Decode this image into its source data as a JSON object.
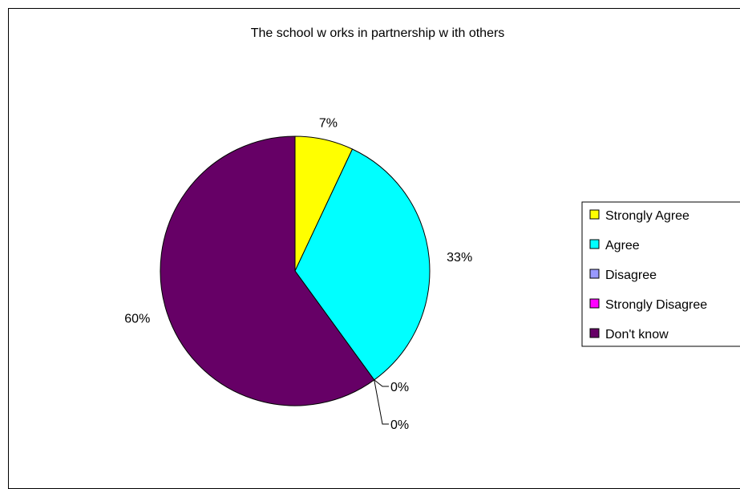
{
  "chart_data": {
    "type": "pie",
    "title": "The school w orks in partnership w ith others",
    "categories": [
      "Strongly Agree",
      "Agree",
      "Disagree",
      "Strongly Disagree",
      "Don't know"
    ],
    "values": [
      7,
      33,
      0,
      0,
      60
    ],
    "value_labels": [
      "7%",
      "33%",
      "0%",
      "0%",
      "60%"
    ],
    "colors": [
      "#FFFF00",
      "#00FFFF",
      "#9999FF",
      "#FF00FF",
      "#660066"
    ],
    "legend_placement": "right"
  }
}
